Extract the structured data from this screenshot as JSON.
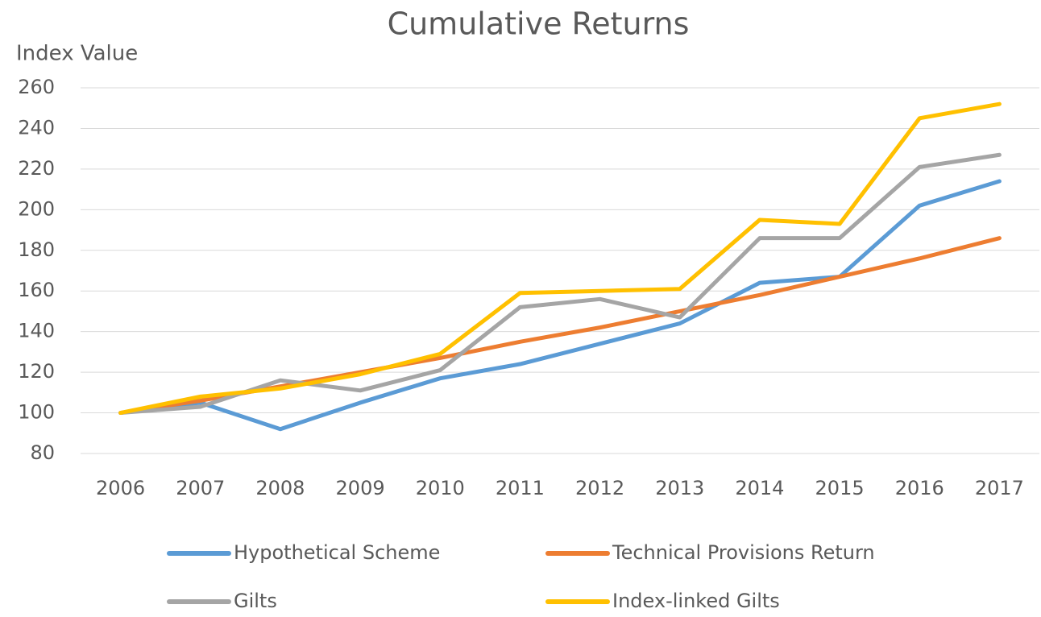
{
  "chart_data": {
    "type": "line",
    "title": "Cumulative Returns",
    "y_label": "Index Value",
    "categories": [
      "2006",
      "2007",
      "2008",
      "2009",
      "2010",
      "2011",
      "2012",
      "2013",
      "2014",
      "2015",
      "2016",
      "2017"
    ],
    "series": [
      {
        "name": "Hypothetical Scheme",
        "color": "#5b9bd5",
        "values": [
          100,
          105,
          92,
          105,
          117,
          124,
          134,
          144,
          164,
          167,
          202,
          214
        ]
      },
      {
        "name": "Technical Provisions Return",
        "color": "#ed7d31",
        "values": [
          100,
          106,
          113,
          120,
          127,
          135,
          142,
          150,
          158,
          167,
          176,
          186
        ]
      },
      {
        "name": "Gilts",
        "color": "#a5a5a5",
        "values": [
          100,
          103,
          116,
          111,
          121,
          152,
          156,
          147,
          186,
          186,
          221,
          227
        ]
      },
      {
        "name": "Index-linked Gilts",
        "color": "#ffc000",
        "values": [
          100,
          108,
          112,
          119,
          129,
          159,
          160,
          161,
          195,
          193,
          245,
          252
        ]
      }
    ],
    "ylim": [
      80,
      260
    ],
    "yticks": [
      80,
      100,
      120,
      140,
      160,
      180,
      200,
      220,
      240,
      260
    ],
    "grid": true,
    "legend": "bottom"
  }
}
